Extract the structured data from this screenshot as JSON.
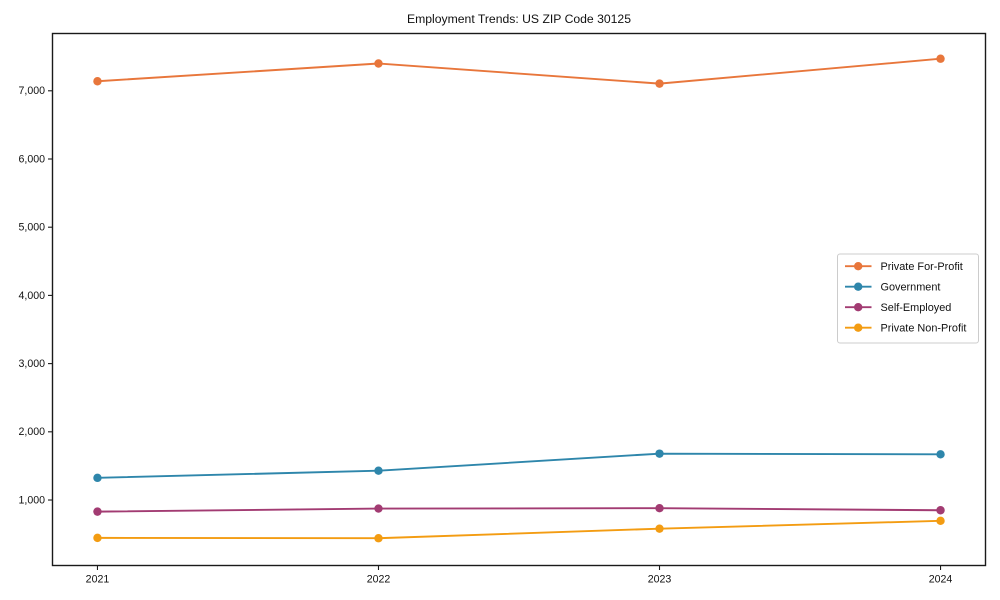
{
  "title": "Employment Trends: US ZIP Code 30125",
  "chart_data": {
    "type": "line",
    "title": "Employment Trends: US ZIP Code 30125",
    "xlabel": "",
    "ylabel": "",
    "x": [
      2021,
      2022,
      2023,
      2024
    ],
    "categories": [
      "2021",
      "2022",
      "2023",
      "2024"
    ],
    "series": [
      {
        "name": "Private For-Profit",
        "color": "#E8763B",
        "values": [
          7140,
          7400,
          7105,
          7470
        ]
      },
      {
        "name": "Government",
        "color": "#2E86AB",
        "values": [
          1325,
          1430,
          1680,
          1670
        ]
      },
      {
        "name": "Self-Employed",
        "color": "#A23B72",
        "values": [
          830,
          875,
          880,
          850
        ]
      },
      {
        "name": "Private Non-Profit",
        "color": "#F39C12",
        "values": [
          445,
          440,
          580,
          695
        ]
      }
    ],
    "xlim": [
      2020.84,
      2024.16
    ],
    "ylim": [
      40,
      7840
    ],
    "yticks": [
      1000,
      2000,
      3000,
      4000,
      5000,
      6000,
      7000
    ],
    "ytick_labels": [
      "1,000",
      "2,000",
      "3,000",
      "4,000",
      "5,000",
      "6,000",
      "7,000"
    ],
    "grid": false,
    "legend_position": "center-right",
    "legend_frame": true,
    "marker": "circle",
    "axis_color": "#1a1a1a",
    "legend_border_color": "#cccccc"
  }
}
